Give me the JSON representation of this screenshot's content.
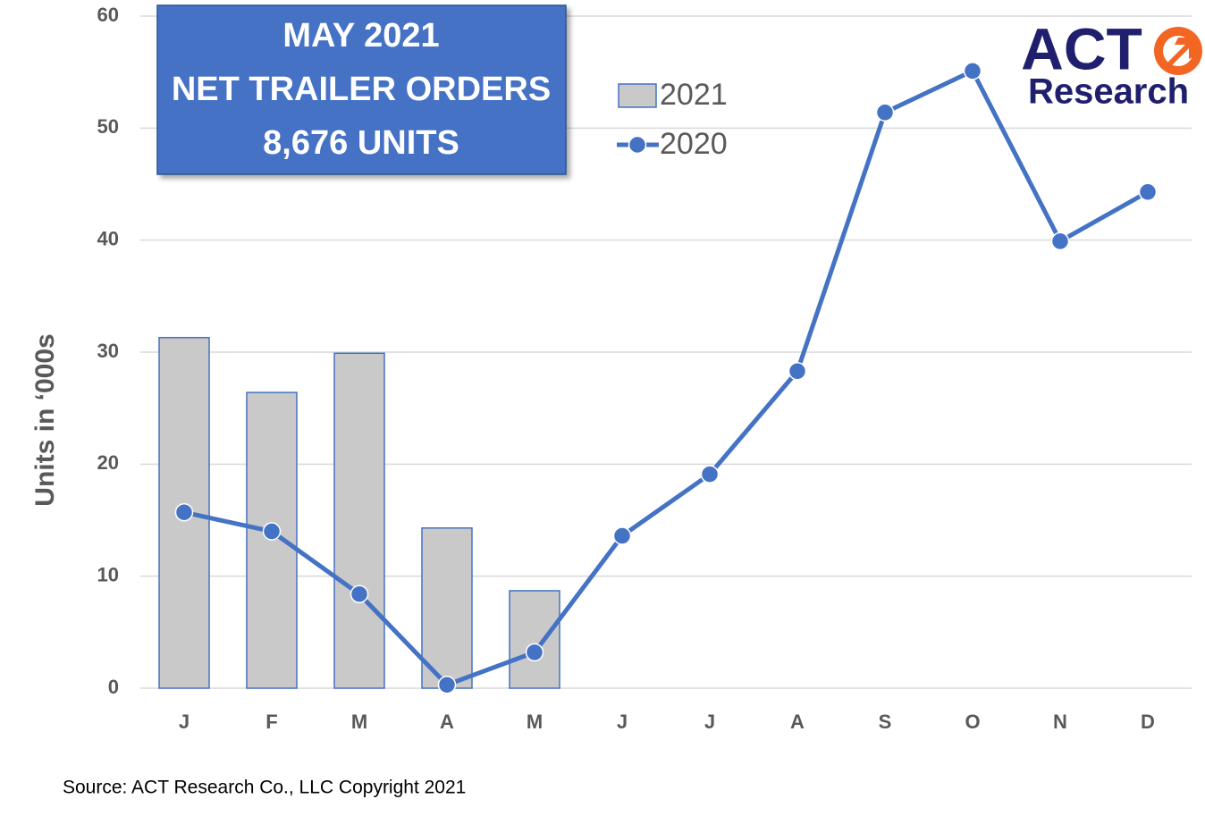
{
  "chart_data": {
    "type": "combo",
    "title": [
      "MAY 2021",
      "NET TRAILER ORDERS",
      "8,676 UNITS"
    ],
    "logo": [
      "ACT",
      "Research"
    ],
    "ylabel": "Units in ‘000s",
    "source": "Source: ACT Research Co., LLC  Copyright 2021",
    "categories": [
      "J",
      "F",
      "M",
      "A",
      "M",
      "J",
      "J",
      "A",
      "S",
      "O",
      "N",
      "D"
    ],
    "series": [
      {
        "name": "2021",
        "type": "bar",
        "color": "#c9c9c9",
        "edge": "#4472c4",
        "values": [
          31.3,
          26.4,
          29.9,
          14.3,
          8.7,
          null,
          null,
          null,
          null,
          null,
          null,
          null
        ]
      },
      {
        "name": "2020",
        "type": "line",
        "color": "#4472c4",
        "values": [
          15.7,
          14.0,
          8.4,
          0.3,
          3.2,
          13.6,
          19.1,
          28.3,
          51.4,
          55.1,
          39.9,
          44.3
        ]
      }
    ],
    "ylim": [
      0,
      60
    ],
    "yticks": [
      0,
      10,
      20,
      30,
      40,
      50,
      60
    ],
    "grid": true
  }
}
